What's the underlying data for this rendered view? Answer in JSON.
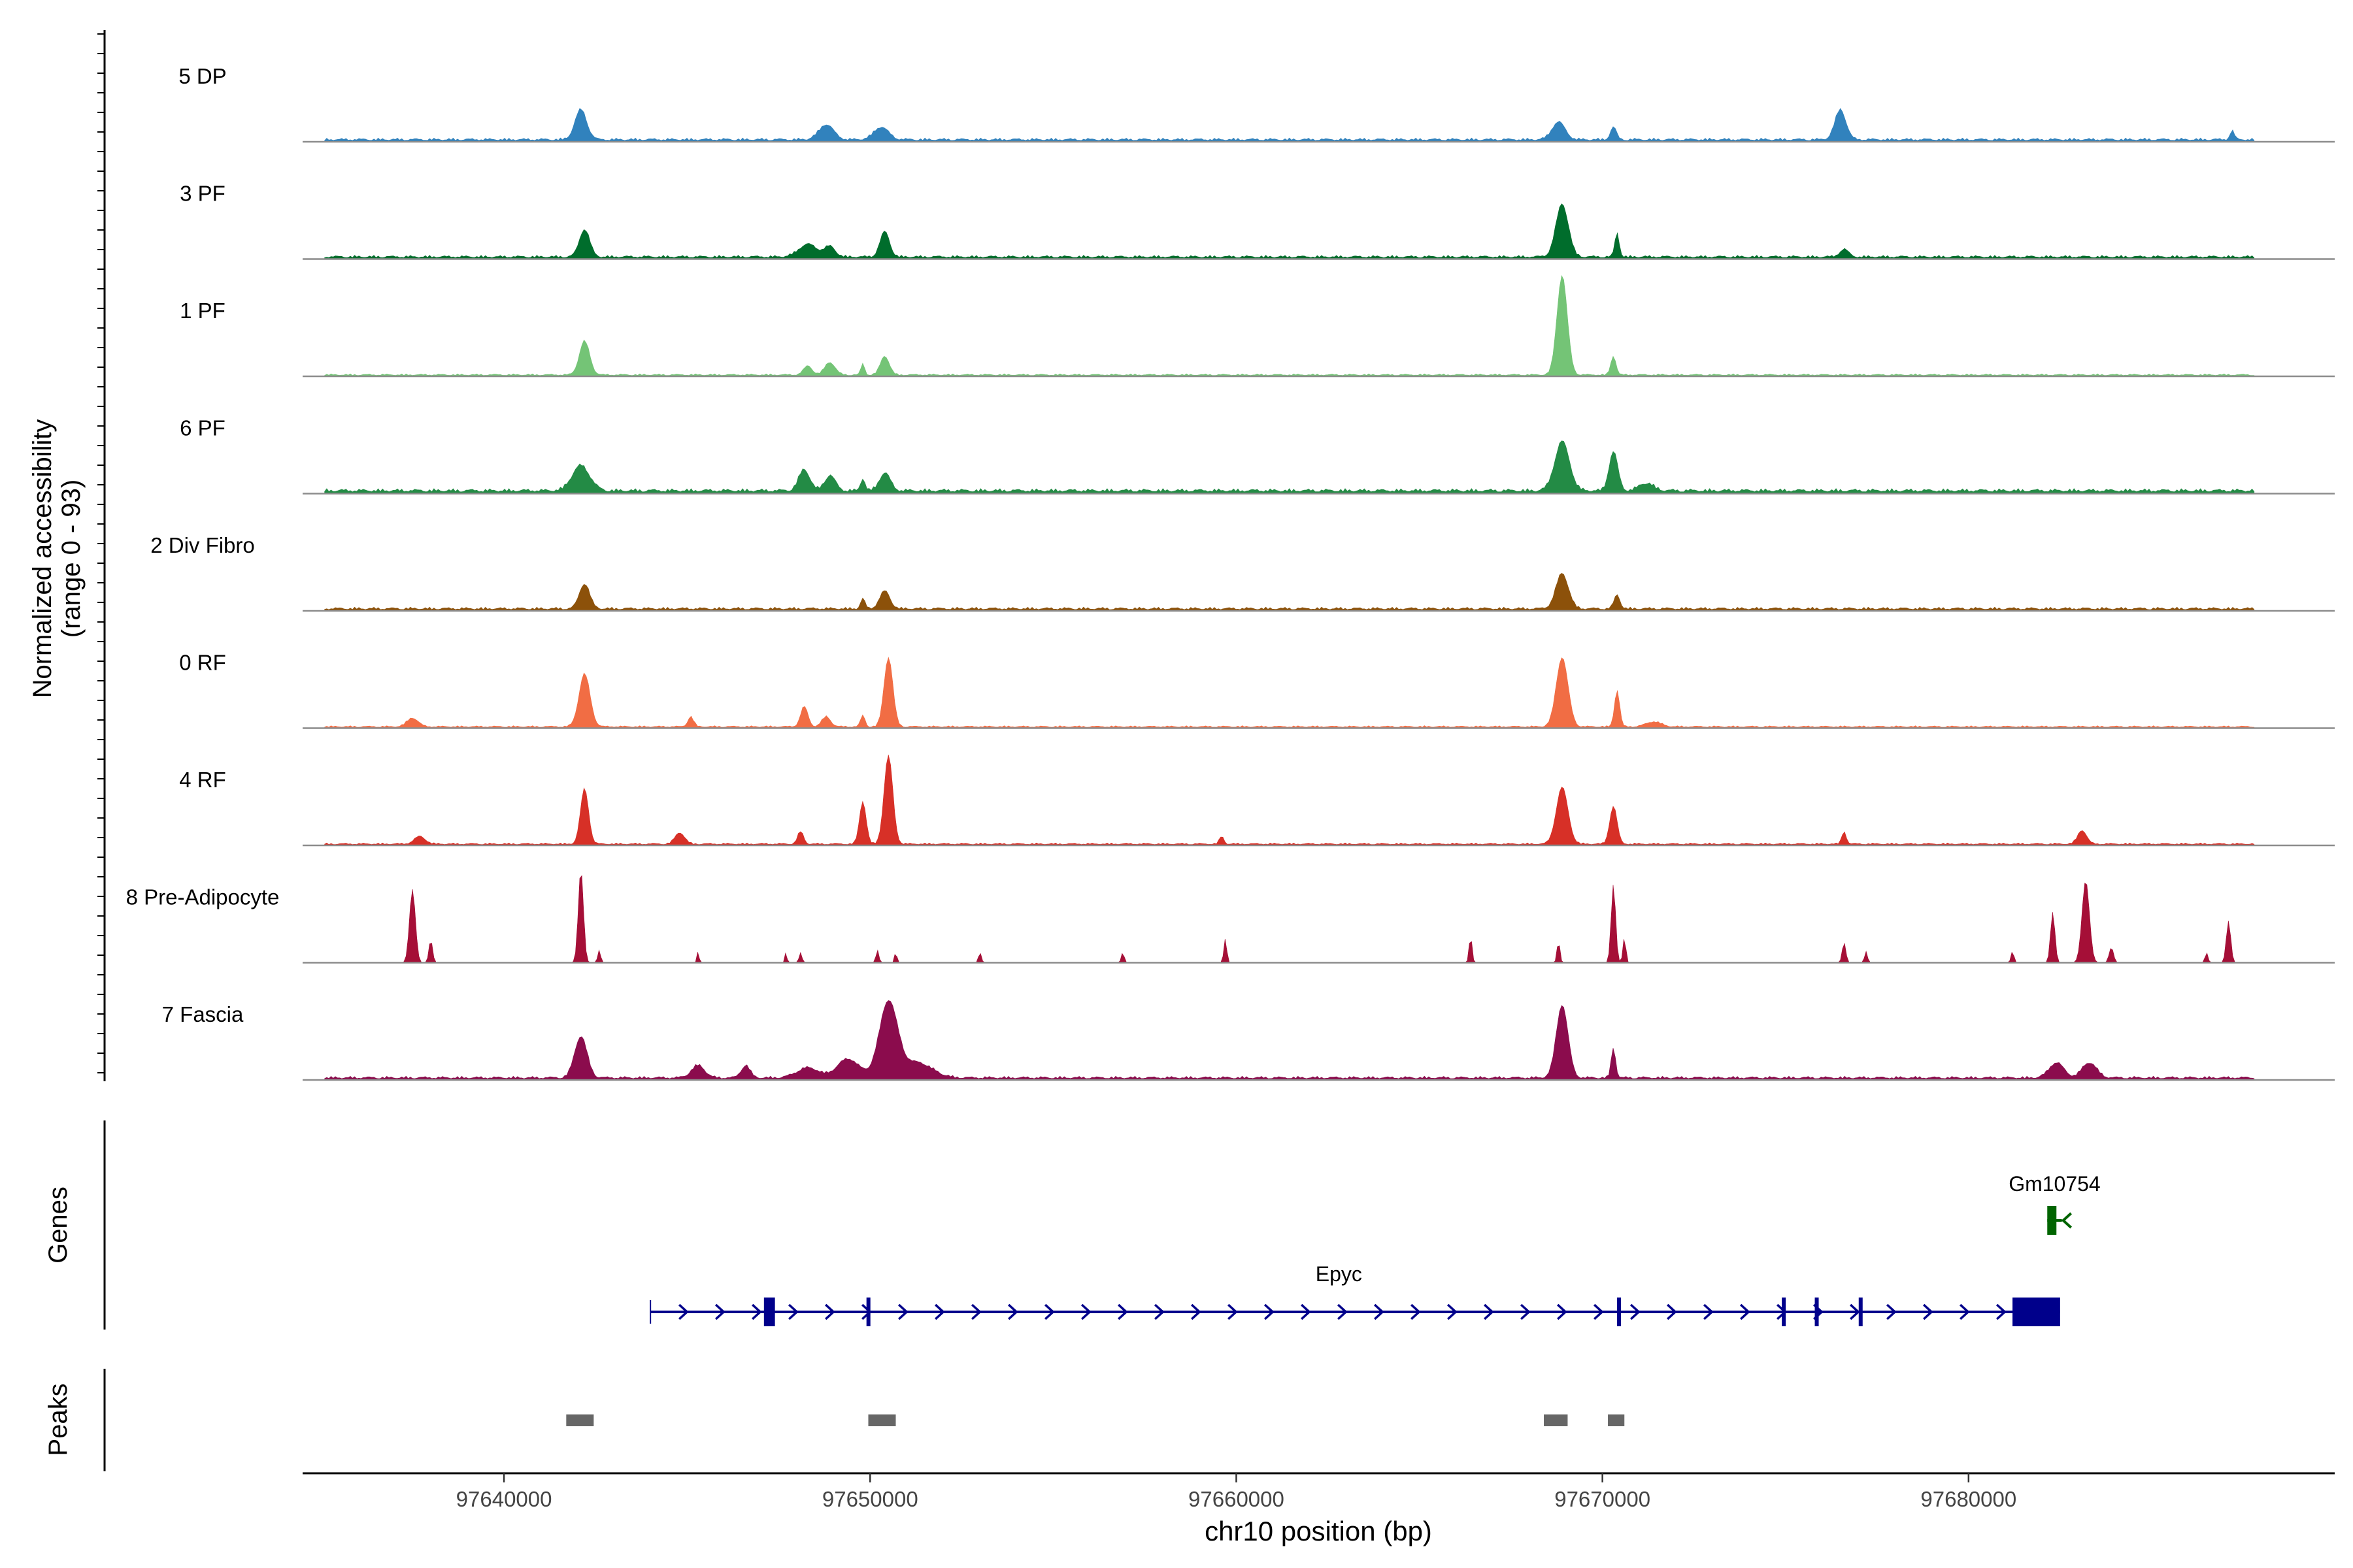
{
  "chart_data": {
    "type": "area",
    "title": "",
    "ylabel": "Normalized accessibility",
    "ylabel_range": "(range 0 - 93)",
    "ylim": [
      0,
      93
    ],
    "xlabel": "chr10 position (bp)",
    "xlim": [
      97634500,
      97690000
    ],
    "x_ticks": [
      97640000,
      97650000,
      97660000,
      97670000,
      97680000
    ],
    "x_tick_labels": [
      "97640000",
      "97650000",
      "97660000",
      "97670000",
      "97680000"
    ],
    "tracks": [
      {
        "name": "5 DP",
        "color": "#3182bd",
        "baseline": 3,
        "peaks": [
          [
            97642100,
            24,
            160
          ],
          [
            97648800,
            12,
            200
          ],
          [
            97650300,
            10,
            200
          ],
          [
            97668800,
            14,
            180
          ],
          [
            97670300,
            10,
            80
          ],
          [
            97676500,
            24,
            150
          ],
          [
            97687200,
            7,
            60
          ]
        ]
      },
      {
        "name": "3 PF",
        "color": "#006d2c",
        "baseline": 3,
        "peaks": [
          [
            97642200,
            22,
            140
          ],
          [
            97648300,
            10,
            250
          ],
          [
            97648900,
            8,
            150
          ],
          [
            97650400,
            20,
            130
          ],
          [
            97668900,
            42,
            170
          ],
          [
            97670400,
            19,
            60
          ],
          [
            97676600,
            6,
            120
          ]
        ]
      },
      {
        "name": "1 PF",
        "color": "#74c476",
        "baseline": 2,
        "peaks": [
          [
            97642200,
            27,
            140
          ],
          [
            97648300,
            7,
            120
          ],
          [
            97648900,
            10,
            140
          ],
          [
            97649800,
            9,
            50
          ],
          [
            97650400,
            15,
            120
          ],
          [
            97668900,
            79,
            140
          ],
          [
            97670300,
            15,
            70
          ]
        ]
      },
      {
        "name": "6 PF",
        "color": "#238b45",
        "baseline": 4,
        "peaks": [
          [
            97642100,
            20,
            240
          ],
          [
            97648200,
            17,
            150
          ],
          [
            97648900,
            12,
            150
          ],
          [
            97649800,
            10,
            60
          ],
          [
            97650400,
            14,
            150
          ],
          [
            97668900,
            39,
            200
          ],
          [
            97670300,
            31,
            120
          ],
          [
            97671200,
            6,
            200
          ]
        ]
      },
      {
        "name": "2 Div Fibro",
        "color": "#8c510a",
        "baseline": 3,
        "peaks": [
          [
            97642200,
            20,
            140
          ],
          [
            97649800,
            8,
            60
          ],
          [
            97650400,
            14,
            140
          ],
          [
            97668900,
            28,
            170
          ],
          [
            97670400,
            11,
            80
          ]
        ]
      },
      {
        "name": "0 RF",
        "color": "#f16d44",
        "baseline": 2,
        "peaks": [
          [
            97637500,
            7,
            150
          ],
          [
            97642200,
            42,
            150
          ],
          [
            97645100,
            8,
            80
          ],
          [
            97648200,
            16,
            100
          ],
          [
            97648800,
            8,
            120
          ],
          [
            97649800,
            9,
            60
          ],
          [
            97650500,
            55,
            120
          ],
          [
            97668900,
            55,
            160
          ],
          [
            97670400,
            29,
            70
          ],
          [
            97671400,
            4,
            200
          ]
        ]
      },
      {
        "name": "4 RF",
        "color": "#d73027",
        "baseline": 2,
        "peaks": [
          [
            97637700,
            6,
            150
          ],
          [
            97642200,
            44,
            110
          ],
          [
            97644800,
            9,
            130
          ],
          [
            97648100,
            10,
            80
          ],
          [
            97649800,
            34,
            90
          ],
          [
            97650500,
            70,
            120
          ],
          [
            97659600,
            6,
            60
          ],
          [
            97668900,
            45,
            160
          ],
          [
            97670300,
            30,
            100
          ],
          [
            97676600,
            10,
            60
          ],
          [
            97683100,
            11,
            120
          ]
        ]
      },
      {
        "name": "8 Pre-Adipocyte",
        "color": "#a50f37",
        "baseline": 0,
        "peaks": [
          [
            97637500,
            58,
            80
          ],
          [
            97638000,
            18,
            50
          ],
          [
            97642100,
            74,
            70
          ],
          [
            97642600,
            10,
            40
          ],
          [
            97645300,
            9,
            30
          ],
          [
            97647700,
            8,
            30
          ],
          [
            97648100,
            8,
            40
          ],
          [
            97650200,
            10,
            40
          ],
          [
            97650700,
            9,
            30
          ],
          [
            97653000,
            8,
            40
          ],
          [
            97656900,
            8,
            40
          ],
          [
            97659700,
            19,
            40
          ],
          [
            97666400,
            21,
            40
          ],
          [
            97668800,
            17,
            40
          ],
          [
            97670300,
            62,
            60
          ],
          [
            97670600,
            20,
            40
          ],
          [
            97676600,
            16,
            50
          ],
          [
            97677200,
            9,
            40
          ],
          [
            97681200,
            9,
            40
          ],
          [
            97682300,
            40,
            60
          ],
          [
            97683200,
            65,
            100
          ],
          [
            97683900,
            12,
            60
          ],
          [
            97687100,
            33,
            60
          ],
          [
            97686500,
            8,
            40
          ]
        ]
      },
      {
        "name": "7 Fascia",
        "color": "#8b0c4d",
        "baseline": 3,
        "peaks": [
          [
            97642100,
            33,
            170
          ],
          [
            97645300,
            10,
            180
          ],
          [
            97646600,
            10,
            120
          ],
          [
            97648300,
            8,
            300
          ],
          [
            97649400,
            15,
            300
          ],
          [
            97650500,
            60,
            250
          ],
          [
            97651300,
            12,
            400
          ],
          [
            97668900,
            58,
            160
          ],
          [
            97670300,
            24,
            60
          ],
          [
            97682400,
            12,
            200
          ],
          [
            97683300,
            12,
            200
          ]
        ]
      }
    ],
    "genes": [
      {
        "name": "Epyc",
        "color": "#00008b",
        "start": 97644000,
        "end": 97682500,
        "strand": "+",
        "exons": [
          [
            97647100,
            97647400
          ],
          [
            97649900,
            97650000
          ],
          [
            97670400,
            97670500
          ],
          [
            97674900,
            97675000
          ],
          [
            97675800,
            97675900
          ],
          [
            97677000,
            97677050
          ],
          [
            97681200,
            97682500
          ]
        ]
      },
      {
        "name": "Gm10754",
        "color": "#006400",
        "start": 97682150,
        "end": 97682550,
        "strand": "-",
        "exons": [
          [
            97682150,
            97682400
          ]
        ]
      }
    ],
    "peaks": [
      [
        97641700,
        97642450
      ],
      [
        97649950,
        97650700
      ],
      [
        97668400,
        97669050
      ],
      [
        97670150,
        97670600
      ]
    ],
    "genes_label": "Genes",
    "peaks_label": "Peaks",
    "peak_color": "#666666"
  }
}
